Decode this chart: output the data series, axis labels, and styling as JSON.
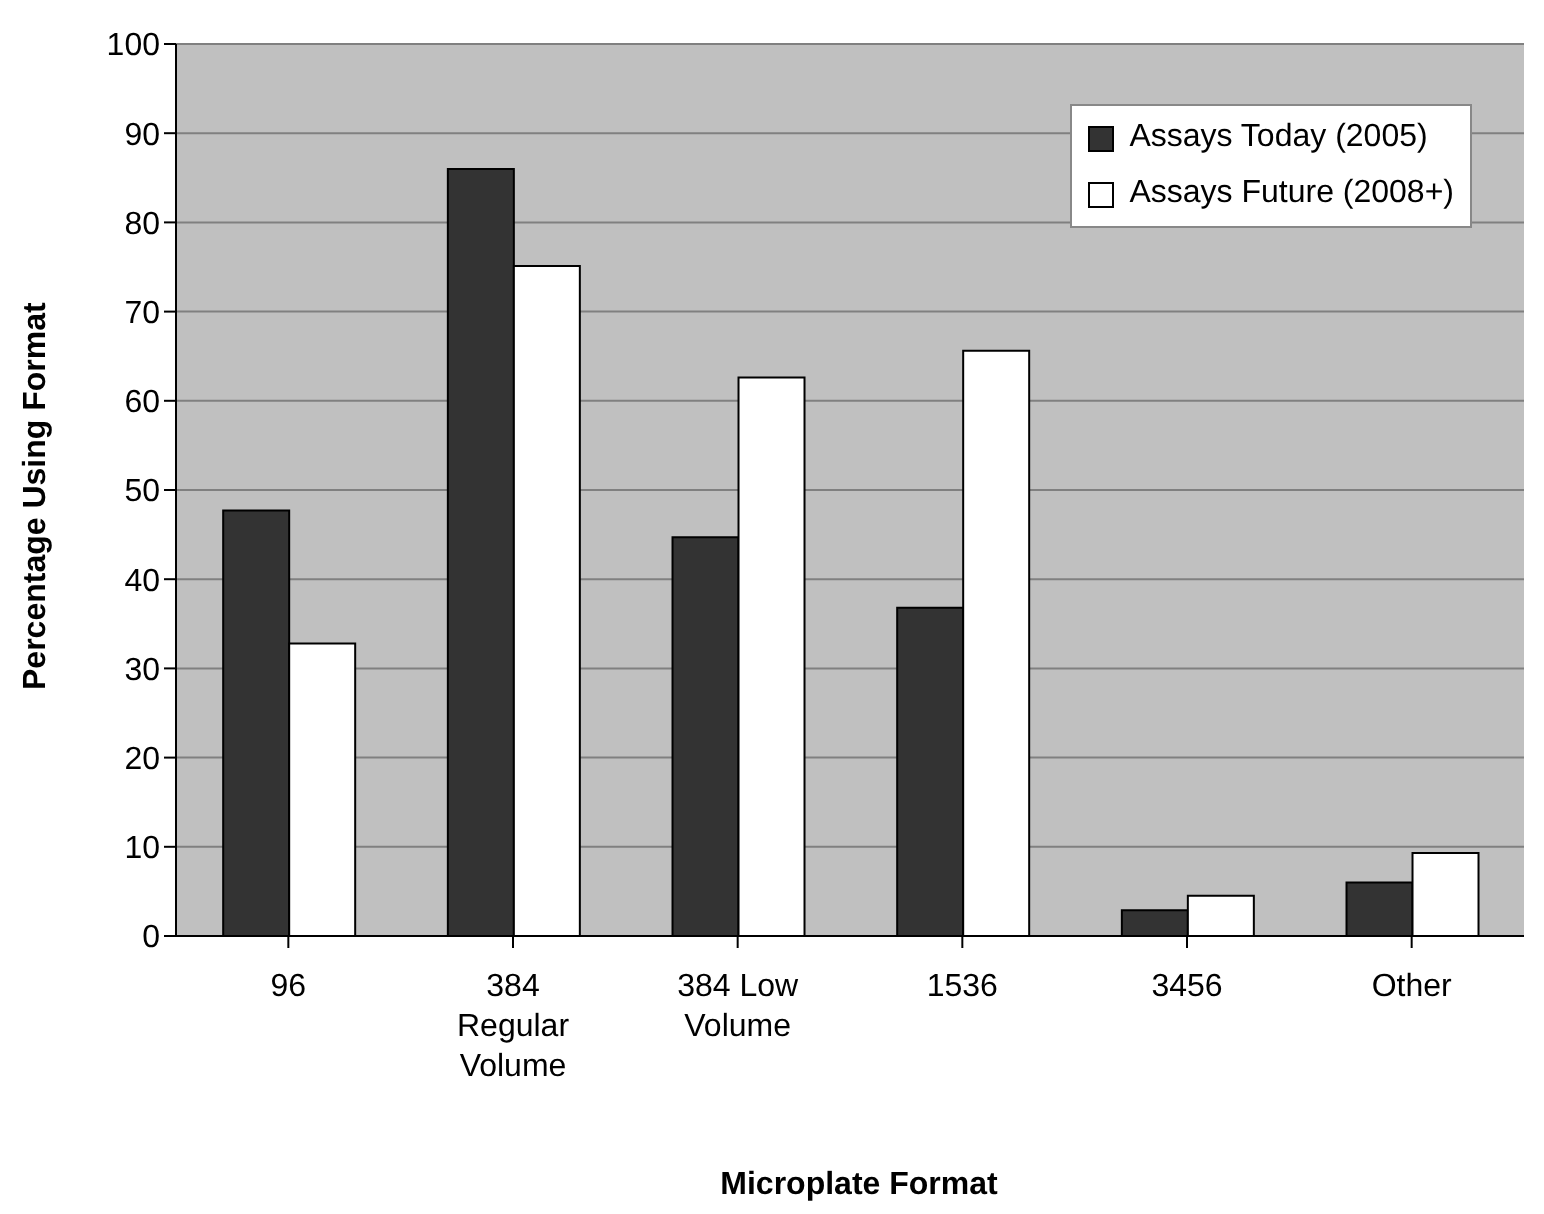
{
  "chart_data": {
    "type": "bar",
    "xlabel": "Microplate Format",
    "ylabel": "Percentage Using Format",
    "categories": [
      "96",
      "384 Regular Volume",
      "384 Low Volume",
      "1536",
      "3456",
      "Other"
    ],
    "series": [
      {
        "name": "Assays Today (2005)",
        "color": "#333333",
        "values": [
          47.7,
          86,
          44.7,
          36.8,
          2.9,
          6
        ]
      },
      {
        "name": "Assays Future (2008+)",
        "color": "#ffffff",
        "values": [
          32.8,
          75.1,
          62.6,
          65.6,
          4.5,
          9.3
        ]
      }
    ],
    "ylim": [
      0,
      100
    ],
    "yticks": [
      0,
      10,
      20,
      30,
      40,
      50,
      60,
      70,
      80,
      90,
      100
    ],
    "grid": "y",
    "legend": "top right"
  }
}
